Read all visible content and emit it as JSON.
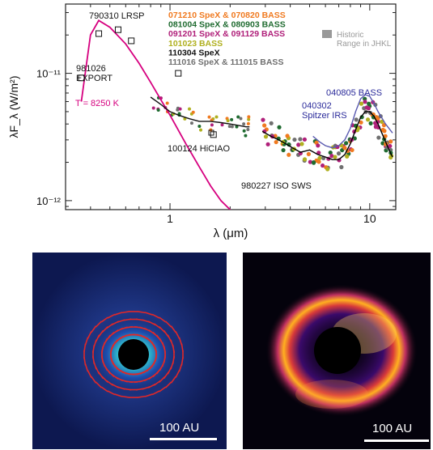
{
  "chart_data": {
    "type": "line",
    "xlabel": "λ (μm)",
    "ylabel": "λF_λ (W/m²)",
    "x_scale": "log",
    "y_scale": "log",
    "xlim": [
      0.3,
      13.5
    ],
    "ylim": [
      8.5e-13,
      3.5e-11
    ],
    "x_ticks": [
      {
        "value": 1,
        "label": "1"
      },
      {
        "value": 10,
        "label": "10"
      }
    ],
    "y_ticks": [
      {
        "value": 1e-12,
        "label": "10⁻¹²"
      },
      {
        "value": 1e-11,
        "label": "10⁻¹¹"
      }
    ],
    "legend": {
      "position": "top-right",
      "entries": [
        {
          "label": "071210 SpeX & 070820 BASS",
          "color": "#f07a20"
        },
        {
          "label": "081004 SpeX & 080903 BASS",
          "color": "#1f6b30"
        },
        {
          "label": "091201 SpeX & 091129 BASS",
          "color": "#b0207a"
        },
        {
          "label": "101023 BASS",
          "color": "#b0b020"
        },
        {
          "label": "110304 SpeX",
          "color": "#111111"
        },
        {
          "label": "111016 SpeX & 111015 BASS",
          "color": "#707070"
        }
      ],
      "historic_label": "Historic\nRange in JHKL",
      "historic_color": "#999999"
    },
    "annotations": [
      {
        "text": "790310 LRSP",
        "color": "#111111"
      },
      {
        "text": "981026\nEXPORT",
        "color": "#111111"
      },
      {
        "text": "T = 8250 K",
        "color": "#d6007f"
      },
      {
        "text": "100124 HiCIAO",
        "color": "#111111"
      },
      {
        "text": "040805 BASS",
        "color": "#2a2a9a"
      },
      {
        "text": "040302\nSpitzer IRS",
        "color": "#2a2a9a"
      },
      {
        "text": "980227 ISO SWS",
        "color": "#111111"
      }
    ],
    "photometry_points": [
      {
        "x": 0.36,
        "y": 9.2e-12
      },
      {
        "x": 0.44,
        "y": 2.05e-11
      },
      {
        "x": 0.55,
        "y": 2.2e-11
      },
      {
        "x": 0.64,
        "y": 1.8e-11
      },
      {
        "x": 1.1,
        "y": 1e-11
      },
      {
        "x": 1.65,
        "y": 3.3e-12
      }
    ],
    "series": [
      {
        "name": "T = 8250 K",
        "color": "#d6007f",
        "x": [
          0.36,
          0.4,
          0.44,
          0.5,
          0.6,
          0.7,
          0.8,
          0.9,
          1.0,
          1.2,
          1.4,
          1.6,
          1.8,
          2.0,
          2.2
        ],
        "y": [
          6e-12,
          2e-11,
          2.6e-11,
          2.3e-11,
          1.7e-11,
          1.2e-11,
          8.5e-12,
          6.2e-12,
          4.7e-12,
          2.8e-12,
          1.85e-12,
          1.3e-12,
          1e-12,
          8.5e-13,
          6.5e-13
        ]
      },
      {
        "name": "Spitzer IRS",
        "color": "#5a5ab0",
        "x": [
          5.2,
          5.6,
          6.0,
          6.5,
          7.0,
          7.5,
          8.0,
          8.5,
          9.0,
          9.5,
          10.0,
          10.5,
          11.0,
          12.0,
          13.0
        ],
        "y": [
          3.2e-12,
          2.9e-12,
          2.7e-12,
          2.6e-12,
          2.7e-12,
          3e-12,
          3.7e-12,
          5e-12,
          6.3e-12,
          6.8e-12,
          6.6e-12,
          5.8e-12,
          5e-12,
          4e-12,
          3.4e-12
        ]
      },
      {
        "name": "BASS mid-IR",
        "color": "#000000",
        "x": [
          2.9,
          3.2,
          3.5,
          3.8,
          4.1,
          4.5,
          5.0,
          5.5,
          6.0,
          6.5,
          7.0,
          7.5,
          8.0,
          8.5,
          9.0,
          9.5,
          10.0,
          10.5,
          11.0,
          11.5,
          12.0,
          12.5,
          13.0
        ],
        "y": [
          3.5e-12,
          3.2e-12,
          3e-12,
          2.8e-12,
          2.6e-12,
          2.4e-12,
          2.5e-12,
          2.3e-12,
          2.2e-12,
          2.1e-12,
          2.1e-12,
          2.3e-12,
          2.8e-12,
          3.6e-12,
          4.5e-12,
          5e-12,
          5e-12,
          4.6e-12,
          4e-12,
          3.4e-12,
          2.9e-12,
          2.5e-12,
          2.2e-12
        ]
      },
      {
        "name": "SpeX near-IR",
        "color": "#111111",
        "x": [
          0.8,
          0.9,
          1.0,
          1.1,
          1.25,
          1.4,
          1.6,
          1.8,
          2.0,
          2.2,
          2.4,
          2.5
        ],
        "y": [
          6.5e-12,
          5.7e-12,
          5e-12,
          4.7e-12,
          4.4e-12,
          4.2e-12,
          4.2e-12,
          4.1e-12,
          4e-12,
          3.9e-12,
          3.8e-12,
          3.8e-12
        ]
      }
    ],
    "images": [
      {
        "name": "polarization-map",
        "scale_label": "100 AU"
      },
      {
        "name": "intensity-map",
        "scale_label": "100 AU"
      }
    ]
  }
}
